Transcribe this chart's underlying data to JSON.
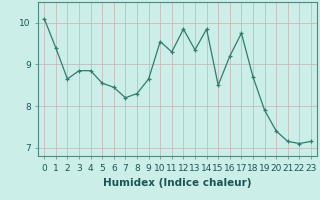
{
  "x": [
    0,
    1,
    2,
    3,
    4,
    5,
    6,
    7,
    8,
    9,
    10,
    11,
    12,
    13,
    14,
    15,
    16,
    17,
    18,
    19,
    20,
    21,
    22,
    23
  ],
  "y": [
    10.1,
    9.4,
    8.65,
    8.85,
    8.85,
    8.55,
    8.45,
    8.2,
    8.3,
    8.65,
    9.55,
    9.3,
    9.85,
    9.35,
    9.85,
    8.5,
    9.2,
    9.75,
    8.7,
    7.9,
    7.4,
    7.15,
    7.1,
    7.15
  ],
  "line_color": "#2e7d6e",
  "marker": "+",
  "marker_size": 3,
  "bg_color": "#cceee8",
  "grid_color": "#c8b0b0",
  "xlabel": "Humidex (Indice chaleur)",
  "ylim": [
    6.8,
    10.5
  ],
  "xlim": [
    -0.5,
    23.5
  ],
  "yticks": [
    7,
    8,
    9,
    10
  ],
  "xticks": [
    0,
    1,
    2,
    3,
    4,
    5,
    6,
    7,
    8,
    9,
    10,
    11,
    12,
    13,
    14,
    15,
    16,
    17,
    18,
    19,
    20,
    21,
    22,
    23
  ],
  "xlabel_fontsize": 7.5,
  "tick_fontsize": 6.5
}
